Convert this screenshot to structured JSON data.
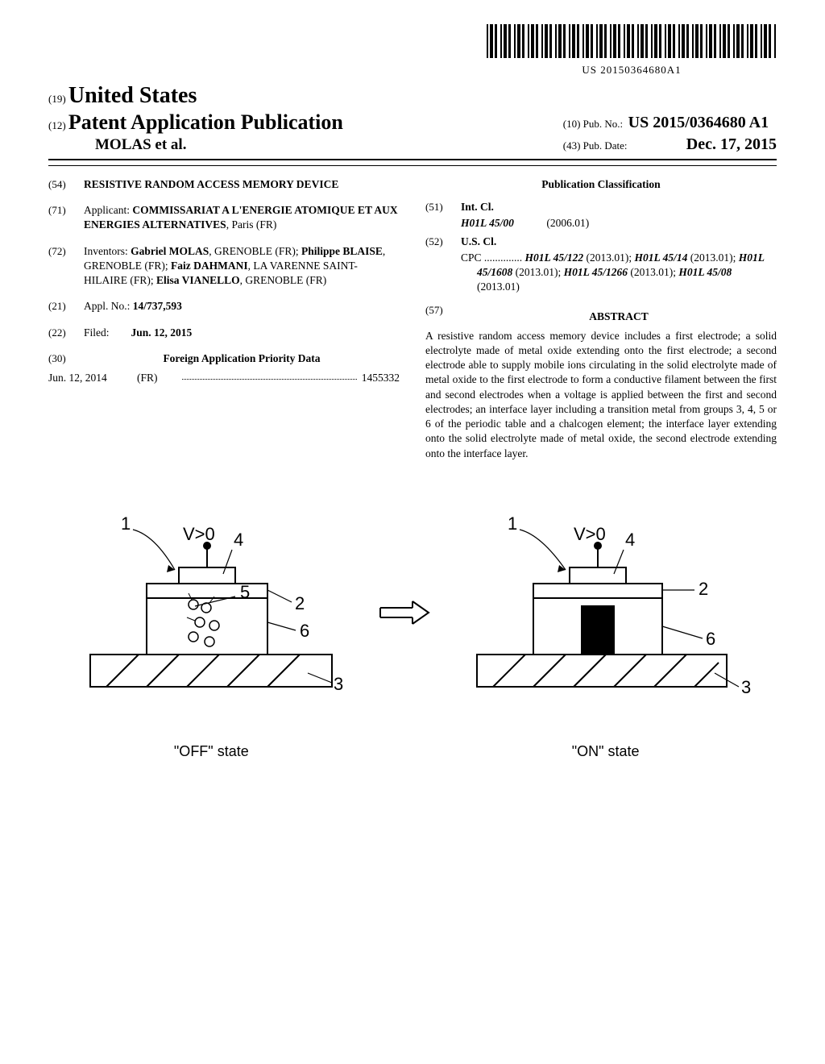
{
  "barcode_text": "US 20150364680A1",
  "country_code": "(19)",
  "country": "United States",
  "pub_type_code": "(12)",
  "pub_type": "Patent Application Publication",
  "author_line": "MOLAS et al.",
  "pub_no_code": "(10)",
  "pub_no_label": "Pub. No.:",
  "pub_no": "US 2015/0364680 A1",
  "pub_date_code": "(43)",
  "pub_date_label": "Pub. Date:",
  "pub_date": "Dec. 17, 2015",
  "s54_code": "(54)",
  "s54_title": "RESISTIVE RANDOM ACCESS MEMORY DEVICE",
  "s71_code": "(71)",
  "s71_label": "Applicant:",
  "s71_value_bold": "COMMISSARIAT A L'ENERGIE ATOMIQUE ET AUX ENERGIES ALTERNATIVES",
  "s71_value_rest": ", Paris (FR)",
  "s72_code": "(72)",
  "s72_label": "Inventors:",
  "s72_text": "Gabriel MOLAS, GRENOBLE (FR); Philippe BLAISE, GRENOBLE (FR); Faiz DAHMANI, LA VARENNE SAINT-HILAIRE (FR); Elisa VIANELLO, GRENOBLE (FR)",
  "s72_names": [
    "Gabriel MOLAS",
    "Philippe BLAISE",
    "Faiz DAHMANI",
    "Elisa VIANELLO"
  ],
  "s21_code": "(21)",
  "s21_label": "Appl. No.:",
  "s21_value": "14/737,593",
  "s22_code": "(22)",
  "s22_label": "Filed:",
  "s22_value": "Jun. 12, 2015",
  "s30_code": "(30)",
  "s30_title": "Foreign Application Priority Data",
  "s30_date": "Jun. 12, 2014",
  "s30_cc": "(FR)",
  "s30_num": "1455332",
  "pc_title": "Publication Classification",
  "s51_code": "(51)",
  "s51_label": "Int. Cl.",
  "s51_class": "H01L 45/00",
  "s51_year": "(2006.01)",
  "s52_code": "(52)",
  "s52_label": "U.S. Cl.",
  "s52_text_prefix": "CPC ..............",
  "s52_c1": "H01L 45/122",
  "s52_y1": "(2013.01);",
  "s52_c2": "H01L 45/14",
  "s52_y2": "(2013.01);",
  "s52_c3": "H01L 45/1608",
  "s52_y3": "(2013.01);",
  "s52_c4": "H01L 45/1266",
  "s52_y4": "(2013.01);",
  "s52_c5": "H01L 45/08",
  "s52_y5": "(2013.01)",
  "s57_code": "(57)",
  "s57_title": "ABSTRACT",
  "abstract": "A resistive random access memory device includes a first electrode; a solid electrolyte made of metal oxide extending onto the first electrode; a second electrode able to supply mobile ions circulating in the solid electrolyte made of metal oxide to the first electrode to form a conductive filament between the first and second electrodes when a voltage is applied between the first and second electrodes; an interface layer including a transition metal from groups 3, 4, 5 or 6 of the periodic table and a chalcogen element; the interface layer extending onto the solid electrolyte made of metal oxide, the second electrode extending onto the interface layer.",
  "fig": {
    "off_caption": "\"OFF\" state",
    "on_caption": "\"ON\" state",
    "voltage_label": "V>0",
    "labels": {
      "l1": "1",
      "l2": "2",
      "l3": "3",
      "l4": "4",
      "l5": "5",
      "l6": "6"
    },
    "stroke_color": "#000000",
    "line_width_main": 2,
    "line_width_lead": 1.2,
    "font_family": "Arial, Helvetica, sans-serif",
    "label_fontsize": 20,
    "caption_fontsize": 18
  }
}
